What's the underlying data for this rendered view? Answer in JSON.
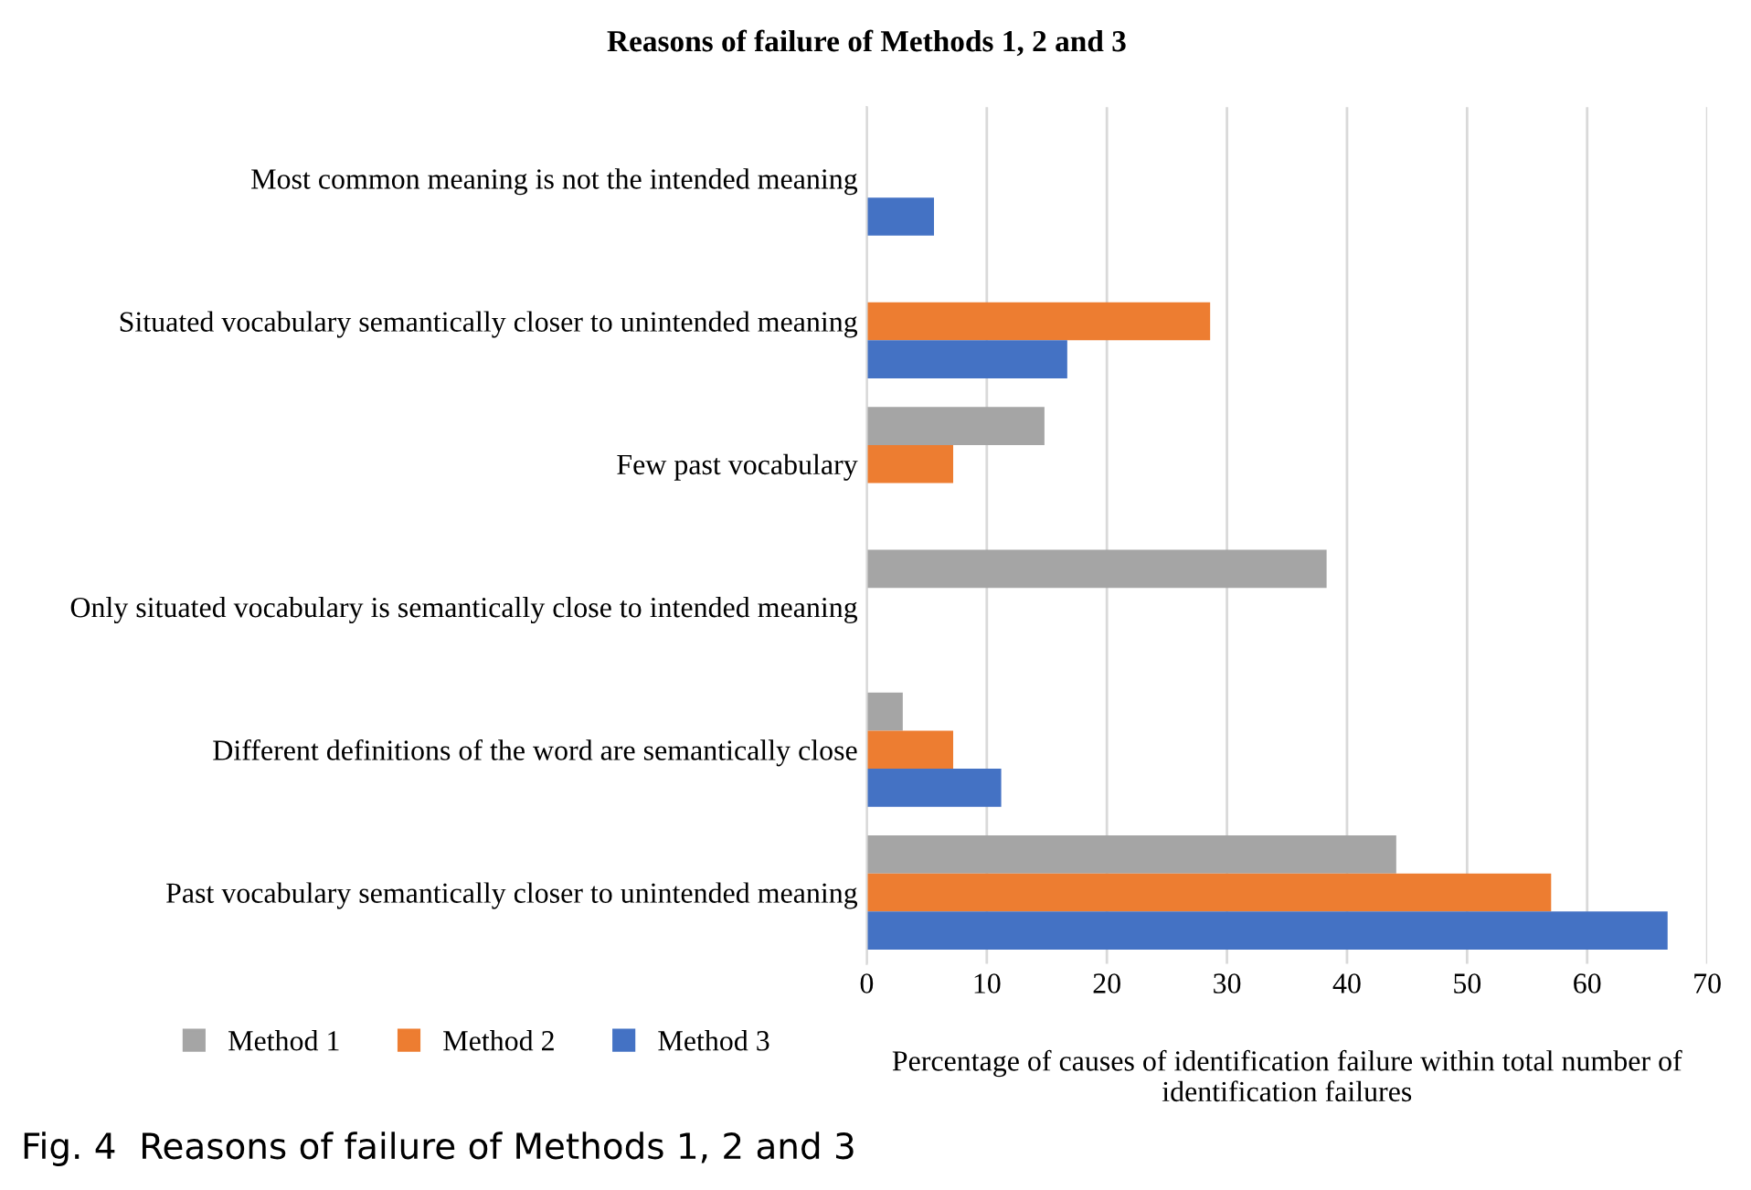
{
  "chart_data": {
    "type": "bar",
    "orientation": "horizontal",
    "title": "Reasons of failure of Methods 1, 2 and 3",
    "categories": [
      "Most common meaning is not the intended meaning",
      "Situated vocabulary semantically closer to unintended meaning",
      "Few past vocabulary",
      "Only situated vocabulary is semantically close to intended meaning",
      "Different definitions of the word are semantically close",
      "Past vocabulary semantically closer to unintended meaning"
    ],
    "series": [
      {
        "name": "Method 1",
        "color": "#a5a5a5",
        "values": [
          null,
          null,
          14.8,
          38.3,
          3.0,
          44.1
        ]
      },
      {
        "name": "Method 2",
        "color": "#ed7d31",
        "values": [
          null,
          28.6,
          7.2,
          null,
          7.2,
          57.0
        ]
      },
      {
        "name": "Method 3",
        "color": "#4472c4",
        "values": [
          5.6,
          16.7,
          null,
          null,
          11.2,
          66.7
        ]
      }
    ],
    "xlabel": "Percentage of causes of identification failure within total number of identification failures",
    "xlim": [
      0,
      70
    ],
    "xticks": [
      0,
      10,
      20,
      30,
      40,
      50,
      60,
      70
    ],
    "grid": "x",
    "legend": "bottom left",
    "annotations": [
      "Fig. 4  Reasons of failure of Methods 1, 2 and 3"
    ]
  }
}
